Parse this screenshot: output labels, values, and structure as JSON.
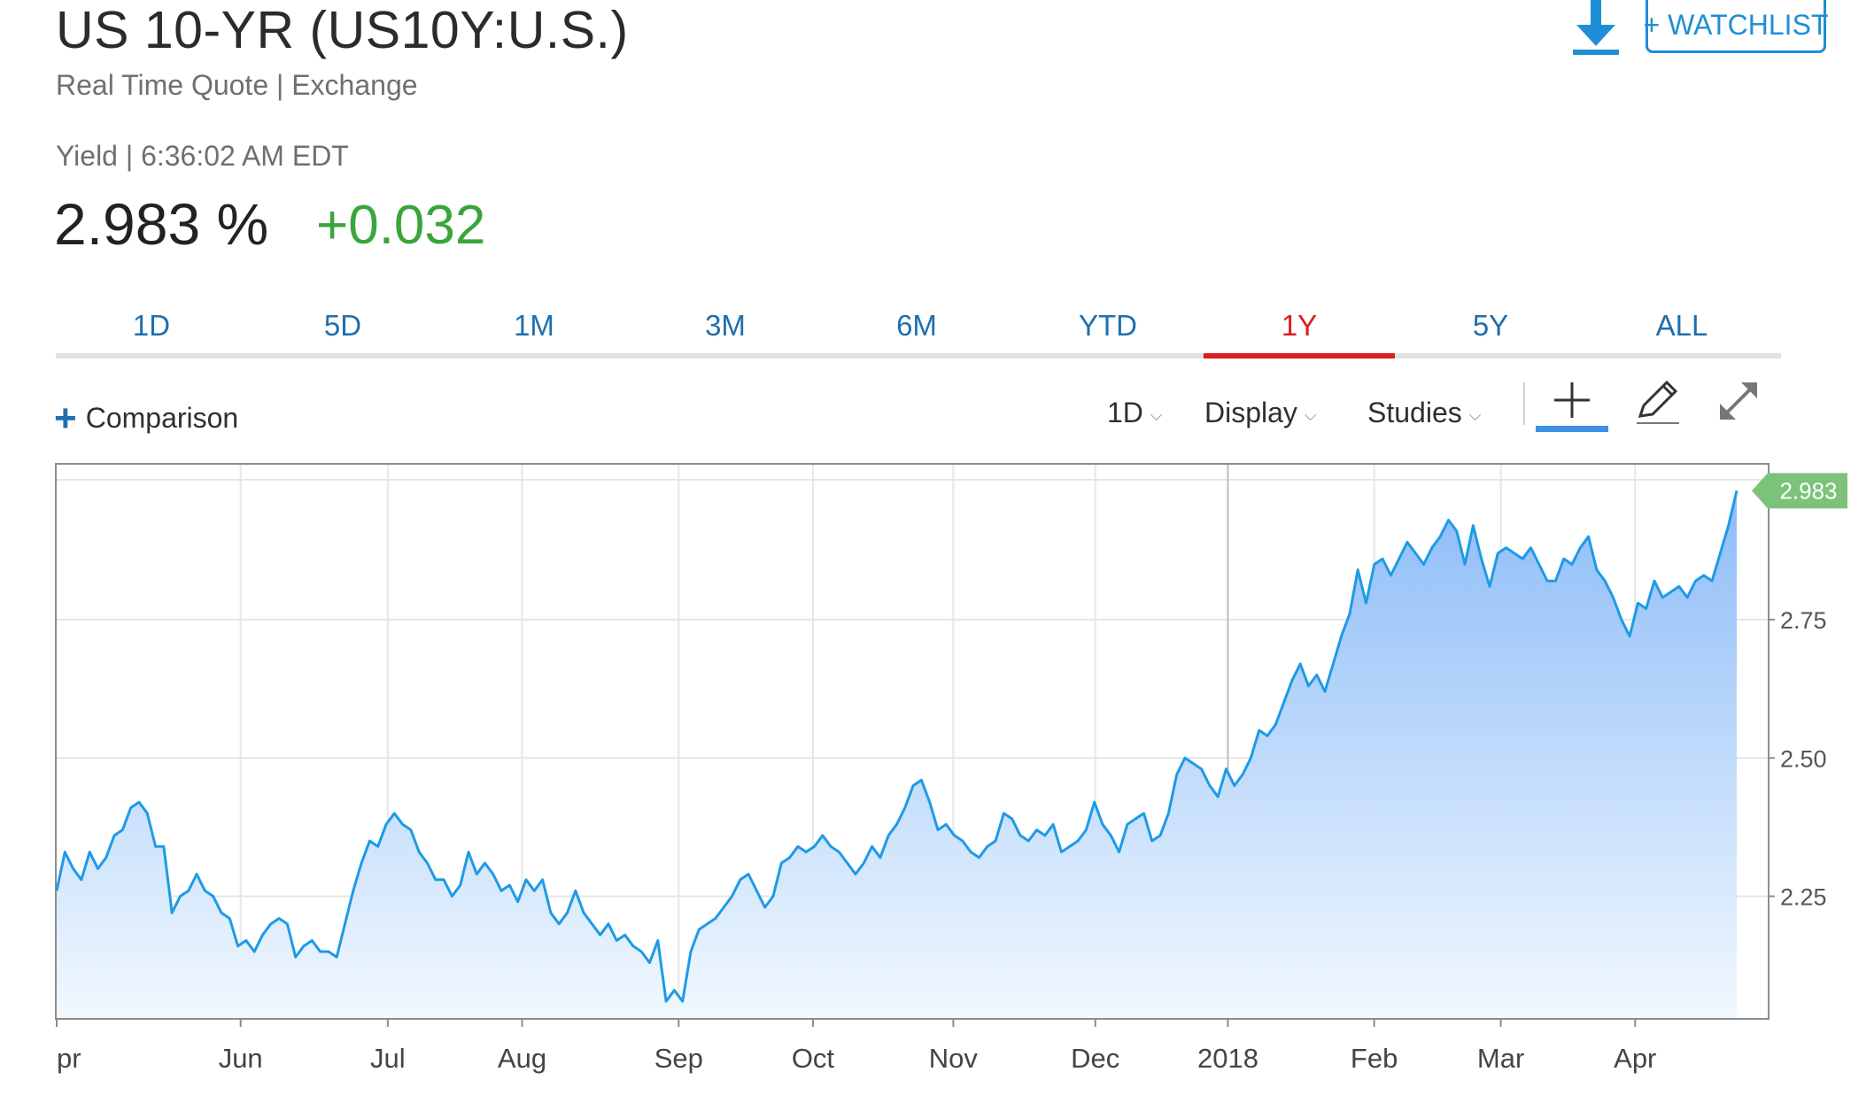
{
  "header": {
    "title": "US 10-YR (US10Y:U.S.)",
    "subtitle": "Real Time Quote | Exchange",
    "yield_label": "Yield | 6:36:02 AM EDT",
    "price": "2.983 %",
    "change": "+0.032",
    "watchlist_label": "+ WATCHLIST"
  },
  "tabs": [
    {
      "label": "1D"
    },
    {
      "label": "5D"
    },
    {
      "label": "1M"
    },
    {
      "label": "3M"
    },
    {
      "label": "6M"
    },
    {
      "label": "YTD"
    },
    {
      "label": "1Y",
      "active": true
    },
    {
      "label": "5Y"
    },
    {
      "label": "ALL"
    }
  ],
  "toolbar": {
    "comparison_label": "Comparison",
    "interval_label": "1D",
    "display_label": "Display",
    "studies_label": "Studies",
    "icons": [
      "crosshair-icon",
      "pencil-icon",
      "expand-icon"
    ]
  },
  "colors": {
    "line": "#1e9ae6",
    "fill_top": "#8dbcf8",
    "fill_bottom": "#f1f8fe",
    "positive": "#3aa53a",
    "active_tab": "#dd1c1c",
    "link": "#1e6fae",
    "last_badge": "#7dc27a"
  },
  "chart_data": {
    "type": "area",
    "title": "",
    "xlabel": "",
    "ylabel": "",
    "ylim": [
      2.03,
      3.03
    ],
    "y_ticks": [
      "2.25",
      "2.50",
      "2.75"
    ],
    "x_ticks": [
      "pr",
      "Jun",
      "Jul",
      "Aug",
      "Sep",
      "Oct",
      "Nov",
      "Dec",
      "2018",
      "Feb",
      "Mar",
      "Apr"
    ],
    "last_value_label": "2.983",
    "grid": true,
    "series": [
      {
        "values": [
          2.26,
          2.33,
          2.3,
          2.28,
          2.33,
          2.3,
          2.32,
          2.36,
          2.37,
          2.41,
          2.42,
          2.4,
          2.34,
          2.34,
          2.22,
          2.25,
          2.26,
          2.29,
          2.26,
          2.25,
          2.22,
          2.21,
          2.16,
          2.17,
          2.15,
          2.18,
          2.2,
          2.21,
          2.2,
          2.14,
          2.16,
          2.17,
          2.15,
          2.15,
          2.14,
          2.2,
          2.26,
          2.31,
          2.35,
          2.34,
          2.38,
          2.4,
          2.38,
          2.37,
          2.33,
          2.31,
          2.28,
          2.28,
          2.25,
          2.27,
          2.33,
          2.29,
          2.31,
          2.29,
          2.26,
          2.27,
          2.24,
          2.28,
          2.26,
          2.28,
          2.22,
          2.2,
          2.22,
          2.26,
          2.22,
          2.2,
          2.18,
          2.2,
          2.17,
          2.18,
          2.16,
          2.15,
          2.13,
          2.17,
          2.06,
          2.08,
          2.06,
          2.15,
          2.19,
          2.2,
          2.21,
          2.23,
          2.25,
          2.28,
          2.29,
          2.26,
          2.23,
          2.25,
          2.31,
          2.32,
          2.34,
          2.33,
          2.34,
          2.36,
          2.34,
          2.33,
          2.31,
          2.29,
          2.31,
          2.34,
          2.32,
          2.36,
          2.38,
          2.41,
          2.45,
          2.46,
          2.42,
          2.37,
          2.38,
          2.36,
          2.35,
          2.33,
          2.32,
          2.34,
          2.35,
          2.4,
          2.39,
          2.36,
          2.35,
          2.37,
          2.36,
          2.38,
          2.33,
          2.34,
          2.35,
          2.37,
          2.42,
          2.38,
          2.36,
          2.33,
          2.38,
          2.39,
          2.4,
          2.35,
          2.36,
          2.4,
          2.47,
          2.5,
          2.49,
          2.48,
          2.45,
          2.43,
          2.48,
          2.45,
          2.47,
          2.5,
          2.55,
          2.54,
          2.56,
          2.6,
          2.64,
          2.67,
          2.63,
          2.65,
          2.62,
          2.67,
          2.72,
          2.76,
          2.84,
          2.78,
          2.85,
          2.86,
          2.83,
          2.86,
          2.89,
          2.87,
          2.85,
          2.88,
          2.9,
          2.93,
          2.91,
          2.85,
          2.92,
          2.86,
          2.81,
          2.87,
          2.88,
          2.87,
          2.86,
          2.88,
          2.85,
          2.82,
          2.82,
          2.86,
          2.85,
          2.88,
          2.9,
          2.84,
          2.82,
          2.79,
          2.75,
          2.72,
          2.78,
          2.77,
          2.82,
          2.79,
          2.8,
          2.81,
          2.79,
          2.82,
          2.83,
          2.82,
          2.87,
          2.92,
          2.983
        ]
      }
    ]
  }
}
